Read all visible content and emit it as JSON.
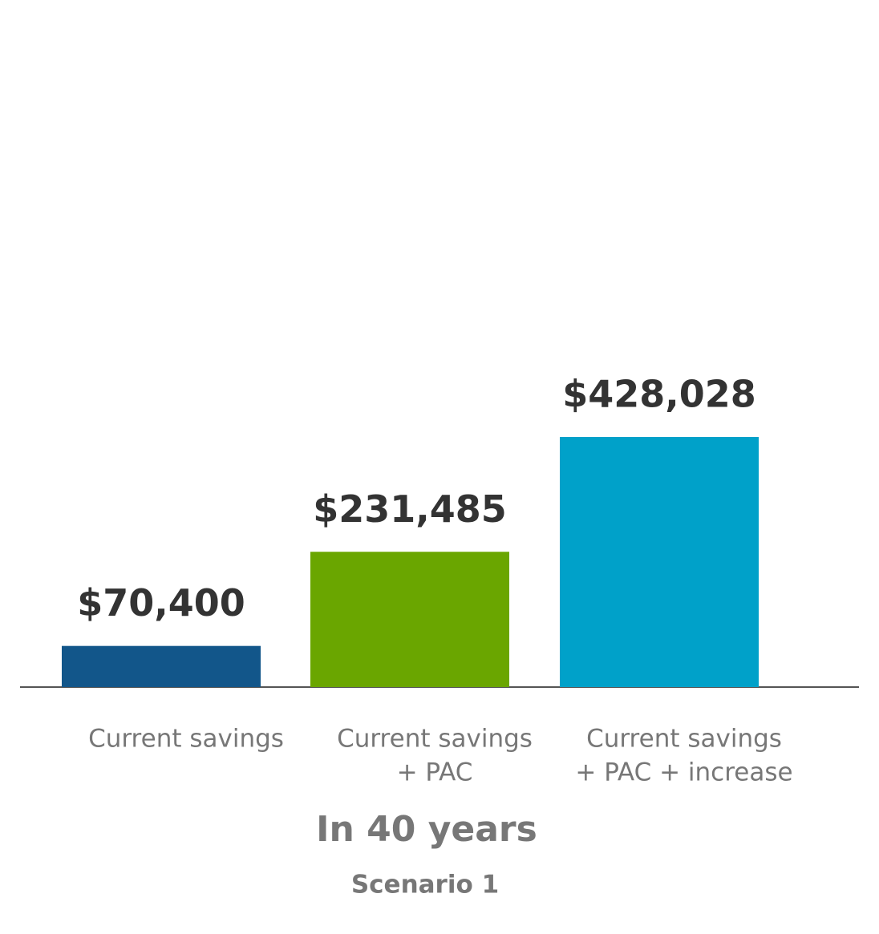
{
  "chart_data": {
    "type": "bar",
    "categories": [
      [
        "Current savings"
      ],
      [
        "Current savings",
        "+ PAC"
      ],
      [
        "Current savings",
        "+ PAC + increase"
      ]
    ],
    "values": [
      70400,
      231485,
      428028
    ],
    "value_labels": [
      "$70,400",
      "$231,485",
      "$428,028"
    ],
    "colors": [
      "#12568a",
      "#6aa600",
      "#00a1c9"
    ],
    "x_label": "In 40 years",
    "subtitle": "Scenario 1"
  }
}
